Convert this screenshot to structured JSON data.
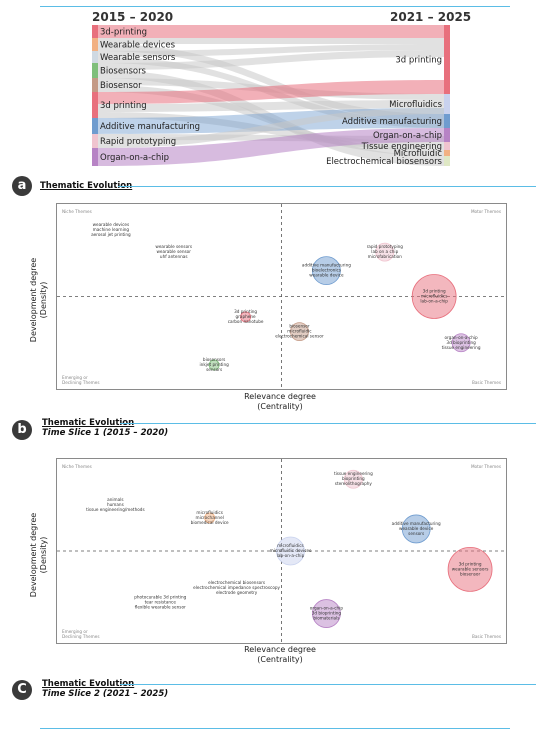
{
  "sankey": {
    "left_header": "2015 – 2020",
    "right_header": "2021 – 2025",
    "left_nodes": [
      {
        "label": "3d-printing",
        "color": "#e8707d"
      },
      {
        "label": "Wearable devices",
        "color": "#f2b183"
      },
      {
        "label": "Wearable sensors",
        "color": "#cfd9e2"
      },
      {
        "label": "Biosensors",
        "color": "#7fbf7b"
      },
      {
        "label": "Biosensor",
        "color": "#c49a86"
      },
      {
        "label": "3d printing",
        "color": "#e8707d"
      },
      {
        "label": "Additive manufacturing",
        "color": "#6f9ccf"
      },
      {
        "label": "Rapid prototyping",
        "color": "#f0c4cf"
      },
      {
        "label": "Organ-on-a-chip",
        "color": "#b783c5"
      }
    ],
    "right_nodes": [
      {
        "label": "3d printing",
        "color": "#e8707d"
      },
      {
        "label": "Microfluidics",
        "color": "#c9d2ee"
      },
      {
        "label": "Additive manufacturing",
        "color": "#6f9ccf"
      },
      {
        "label": "Organ-on-a-chip",
        "color": "#b783c5"
      },
      {
        "label": "Tissue engineering",
        "color": "#f0c4cf"
      },
      {
        "label": "Microfluidic",
        "color": "#f2b183"
      },
      {
        "label": "Electrochemical biosensors",
        "color": "#dfe8c5"
      }
    ]
  },
  "panels": {
    "a": {
      "letter": "a",
      "title": "Thematic Evolution"
    },
    "b": {
      "letter": "b",
      "title": "Thematic Evolution",
      "subtitle": "Time Slice 1 (2015 – 2020)"
    },
    "c": {
      "letter": "C",
      "title": "Thematic Evolution",
      "subtitle": "Time Slice 2 (2021 – 2025)"
    }
  },
  "axes": {
    "x_title_1": "Relevance degree",
    "x_title_2": "(Centrality)",
    "y_title_1": "Development degree",
    "y_title_2": "(Density)"
  },
  "quadrants": {
    "niche": "Niche Themes",
    "motor": "Motor Themes",
    "emerging_1": "Emerging or",
    "emerging_2": "Declining Themes",
    "basic": "Basic Themes"
  },
  "chart_data": [
    {
      "type": "scatter",
      "title": "Time Slice 1 (2015 – 2020)",
      "xlabel": "Relevance degree (Centrality)",
      "ylabel": "Development degree (Density)",
      "clusters": [
        {
          "labels": [
            "wearable devices",
            "machine learning",
            "aerosol jet printing"
          ],
          "x": 0.12,
          "y": 0.86,
          "size": 0,
          "color": "#f2b183"
        },
        {
          "labels": [
            "wearable sensors",
            "wearable sensor",
            "uhf antennas"
          ],
          "x": 0.26,
          "y": 0.74,
          "size": 0,
          "color": "#cfd9e2"
        },
        {
          "labels": [
            "3d printing",
            "graphene",
            "carbon nanotube"
          ],
          "x": 0.42,
          "y": 0.39,
          "size": 1,
          "color": "#e8707d"
        },
        {
          "labels": [
            "biosensor",
            "microfluidic",
            "electrochemical sensor"
          ],
          "x": 0.54,
          "y": 0.31,
          "size": 2,
          "color": "#c49a86"
        },
        {
          "labels": [
            "biosensors",
            "inkjet printing",
            "sensors"
          ],
          "x": 0.35,
          "y": 0.13,
          "size": 1,
          "color": "#7fbf7b"
        },
        {
          "labels": [
            "additive manufacturing",
            "bioelectronics",
            "wearable device"
          ],
          "x": 0.6,
          "y": 0.64,
          "size": 3,
          "color": "#6f9ccf"
        },
        {
          "labels": [
            "rapid prototyping",
            "lab on a chip",
            "microfabrication"
          ],
          "x": 0.73,
          "y": 0.74,
          "size": 2,
          "color": "#f0c4cf"
        },
        {
          "labels": [
            "3d printing",
            "microfluidics",
            "lab-on-a-chip"
          ],
          "x": 0.84,
          "y": 0.5,
          "size": 4,
          "color": "#e8707d"
        },
        {
          "labels": [
            "organ-on-a-chip",
            "3d bioprinting",
            "tissue engineering"
          ],
          "x": 0.9,
          "y": 0.25,
          "size": 2,
          "color": "#b783c5"
        }
      ]
    },
    {
      "type": "scatter",
      "title": "Time Slice 2 (2021 – 2025)",
      "xlabel": "Relevance degree (Centrality)",
      "ylabel": "Development degree (Density)",
      "clusters": [
        {
          "labels": [
            "animals",
            "humans",
            "tissue engineering/methods"
          ],
          "x": 0.13,
          "y": 0.75,
          "size": 0,
          "color": "#cccccc"
        },
        {
          "labels": [
            "microfluidics",
            "microchannel",
            "biomedical device"
          ],
          "x": 0.34,
          "y": 0.68,
          "size": 1,
          "color": "#f2b183"
        },
        {
          "labels": [
            "microfluidics",
            "microfluidic devices",
            "lab-on-a-chip"
          ],
          "x": 0.52,
          "y": 0.5,
          "size": 3,
          "color": "#c9d2ee"
        },
        {
          "labels": [
            "electrochemical biosensors",
            "electrochemical impedance spectroscopy",
            "electrode geometry"
          ],
          "x": 0.4,
          "y": 0.3,
          "size": 0,
          "color": "#dfe8c5"
        },
        {
          "labels": [
            "photocurable 3d printing",
            "tear resistance",
            "flexible wearable sensor"
          ],
          "x": 0.23,
          "y": 0.22,
          "size": 0,
          "color": "#cccccc"
        },
        {
          "labels": [
            "tissue engineering",
            "bioprinting",
            "stereolithography"
          ],
          "x": 0.66,
          "y": 0.89,
          "size": 2,
          "color": "#f0c4cf"
        },
        {
          "labels": [
            "additive manufacturing",
            "wearable device",
            "sensors"
          ],
          "x": 0.8,
          "y": 0.62,
          "size": 3,
          "color": "#6f9ccf"
        },
        {
          "labels": [
            "3d printing",
            "wearable sensors",
            "biosensor"
          ],
          "x": 0.92,
          "y": 0.4,
          "size": 4,
          "color": "#e8707d"
        },
        {
          "labels": [
            "organ-on-a-chip",
            "3d bioprinting",
            "biomaterials"
          ],
          "x": 0.6,
          "y": 0.16,
          "size": 3,
          "color": "#b783c5"
        }
      ]
    }
  ]
}
